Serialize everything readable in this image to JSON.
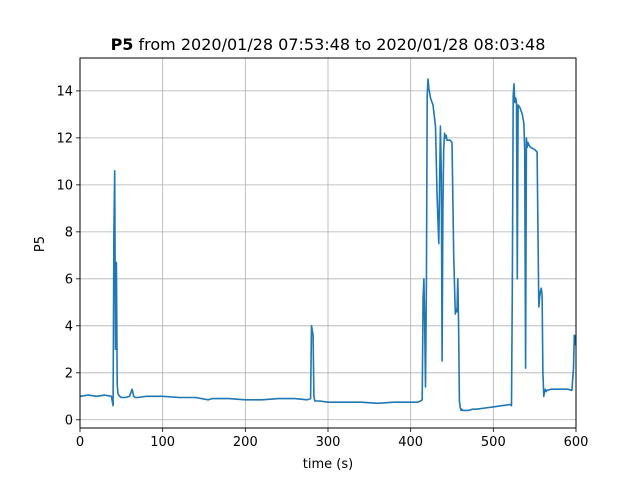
{
  "chart_data": {
    "type": "line",
    "title_bold": "P5",
    "title_rest": " from 2020/01/28 07:53:48 to 2020/01/28 08:03:48",
    "xlabel": "time (s)",
    "ylabel": "P5",
    "xlim": [
      0,
      600
    ],
    "ylim": [
      -0.35,
      15.4
    ],
    "grid": true,
    "line_color": "#1f77b4",
    "xticks": [
      0,
      100,
      200,
      300,
      400,
      500,
      600
    ],
    "yticks": [
      0,
      2,
      4,
      6,
      8,
      10,
      12,
      14
    ],
    "series": [
      {
        "name": "",
        "x": [
          0,
          10,
          20,
          30,
          38,
          40,
          41,
          42,
          43,
          44,
          45,
          46,
          48,
          50,
          55,
          60,
          63,
          65,
          67,
          70,
          80,
          100,
          120,
          140,
          155,
          160,
          180,
          200,
          220,
          240,
          260,
          275,
          279,
          280,
          281,
          282,
          283,
          284,
          285,
          290,
          300,
          320,
          340,
          360,
          380,
          400,
          408,
          412,
          414,
          415,
          416,
          417,
          418,
          419,
          420,
          421,
          422,
          423,
          424,
          425,
          427,
          430,
          432,
          434,
          436,
          437,
          438,
          439,
          440,
          441,
          442,
          443,
          444,
          445,
          448,
          450,
          452,
          454,
          455,
          456,
          457,
          458,
          459,
          460,
          461,
          462,
          463,
          464,
          465,
          470,
          475,
          480,
          490,
          500,
          510,
          520,
          522,
          523,
          524,
          525,
          526,
          527,
          528,
          529,
          530,
          532,
          535,
          537,
          538,
          539,
          540,
          541,
          542,
          543,
          545,
          550,
          553,
          555,
          556,
          557,
          558,
          559,
          560,
          561,
          562,
          563,
          564,
          565,
          570,
          580,
          590,
          595,
          597,
          598,
          599,
          600
        ],
        "y": [
          1.0,
          1.05,
          1.0,
          1.05,
          1.0,
          0.6,
          8.0,
          10.6,
          3.0,
          6.7,
          1.5,
          1.1,
          1.0,
          0.95,
          0.95,
          1.0,
          1.3,
          1.0,
          0.95,
          0.95,
          1.0,
          1.0,
          0.95,
          0.95,
          0.85,
          0.9,
          0.9,
          0.85,
          0.85,
          0.9,
          0.9,
          0.85,
          0.9,
          4.0,
          3.8,
          3.6,
          1.0,
          0.8,
          0.8,
          0.8,
          0.75,
          0.75,
          0.75,
          0.7,
          0.75,
          0.75,
          0.75,
          0.8,
          0.85,
          5.2,
          6.0,
          4.0,
          1.4,
          5.8,
          13.8,
          14.5,
          14.1,
          13.9,
          13.7,
          13.6,
          13.4,
          12.5,
          9.5,
          7.5,
          12.5,
          10.5,
          2.5,
          9.0,
          11.5,
          12.2,
          12.0,
          12.1,
          11.9,
          11.9,
          11.9,
          11.8,
          7.0,
          4.5,
          4.7,
          4.6,
          6.0,
          4.0,
          0.8,
          0.5,
          0.4,
          0.45,
          0.4,
          0.4,
          0.4,
          0.4,
          0.45,
          0.45,
          0.5,
          0.55,
          0.6,
          0.65,
          0.6,
          5.5,
          13.8,
          14.3,
          13.5,
          13.7,
          13.5,
          6.0,
          13.4,
          13.3,
          13.0,
          12.6,
          11.5,
          2.2,
          12.0,
          11.6,
          11.8,
          11.7,
          11.6,
          11.5,
          11.4,
          4.8,
          5.2,
          5.5,
          5.6,
          5.3,
          2.0,
          1.0,
          1.2,
          1.3,
          1.2,
          1.25,
          1.3,
          1.3,
          1.3,
          1.25,
          2.2,
          3.6,
          3.2,
          3.6
        ]
      }
    ]
  }
}
